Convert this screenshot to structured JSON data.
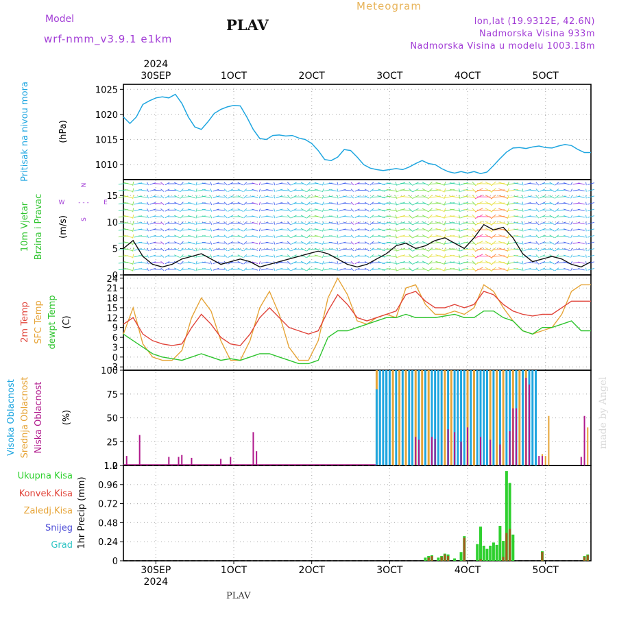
{
  "header": {
    "model_label": "Model",
    "model_name": "wrf-nmm_v3.9.1  e1km",
    "station": "PLAV",
    "meteogram": "Meteogram",
    "lonlat": "lon,lat (19.9312E, 42.6N)",
    "elevation": "Nadmorska Visina 933m",
    "model_elevation": "Nadmorska Visina u modelu 1003.18m",
    "footer_station": "PLAV",
    "made_by": "made by Angel"
  },
  "colors": {
    "pressure": "#1fa6e0",
    "temp2m": "#e0443a",
    "sfc_temp": "#e6a437",
    "dewpt": "#2ec42e",
    "high_cloud": "#1fa6e0",
    "mid_cloud": "#e6a437",
    "low_cloud": "#b0188c",
    "total_precip": "#2ed02e",
    "conv_precip": "#a35a1d",
    "purple": "#a23dd6",
    "snow": "#4a4ad6",
    "grad": "#2ec4c4"
  },
  "time_axis": {
    "top_labels": [
      "30SEP",
      "1OCT",
      "2OCT",
      "3OCT",
      "4OCT",
      "5OCT"
    ],
    "year": "2024",
    "bottom_labels": [
      "30SEP",
      "1OCT",
      "2OCT",
      "3OCT",
      "4OCT",
      "5OCT"
    ]
  },
  "chart_data": [
    {
      "type": "line",
      "id": "pressure",
      "ylabel": "Pritisak na nivou mora",
      "unit": "(hPa)",
      "ylim": [
        1007,
        1026
      ],
      "yticks": [
        1010,
        1015,
        1020,
        1025
      ],
      "x_hours": [
        0,
        2,
        4,
        6,
        8,
        10,
        12,
        14,
        16,
        18,
        20,
        22,
        24,
        26,
        28,
        30,
        32,
        34,
        36,
        38,
        40,
        42,
        44,
        46,
        48,
        50,
        52,
        54,
        56,
        58,
        60,
        62,
        64,
        66,
        68,
        70,
        72,
        74,
        76,
        78,
        80,
        82,
        84,
        86,
        88,
        90,
        92,
        94,
        96,
        98,
        100,
        102,
        104,
        106,
        108,
        110,
        112,
        114,
        116,
        118,
        120,
        122,
        124,
        126,
        128,
        130,
        132,
        134,
        136,
        138,
        140,
        142,
        144
      ],
      "values": [
        1019.5,
        1018.2,
        1019.5,
        1022.0,
        1022.7,
        1023.3,
        1023.5,
        1023.3,
        1024.0,
        1022.2,
        1019.5,
        1017.5,
        1017.0,
        1018.5,
        1020.2,
        1021.0,
        1021.5,
        1021.8,
        1021.7,
        1019.5,
        1017.0,
        1015.2,
        1015.0,
        1015.8,
        1015.9,
        1015.7,
        1015.8,
        1015.3,
        1015.0,
        1014.2,
        1012.8,
        1011.0,
        1010.8,
        1011.5,
        1013.0,
        1012.8,
        1011.5,
        1010.0,
        1009.3,
        1009.0,
        1008.8,
        1009.0,
        1009.2,
        1009.0,
        1009.5,
        1010.2,
        1010.8,
        1010.2,
        1010.0,
        1009.2,
        1008.6,
        1008.3,
        1008.6,
        1008.3,
        1008.6,
        1008.2,
        1008.5,
        1009.8,
        1011.2,
        1012.5,
        1013.3,
        1013.4,
        1013.2,
        1013.5,
        1013.7,
        1013.4,
        1013.3,
        1013.7,
        1014.0,
        1013.8,
        1013.0,
        1012.4,
        1012.4
      ]
    },
    {
      "type": "line",
      "id": "wind",
      "ylabel": "10m Vjetar Brzina i Pravac",
      "unit": "(m/s)",
      "ylim": [
        0,
        18
      ],
      "yticks": [
        0,
        5,
        10,
        15
      ],
      "compass": {
        "n": "N",
        "w": "W",
        "e": "E",
        "s": "S"
      },
      "x_hours": [
        0,
        3,
        6,
        9,
        12,
        15,
        18,
        21,
        24,
        27,
        30,
        33,
        36,
        39,
        42,
        45,
        48,
        51,
        54,
        57,
        60,
        63,
        66,
        69,
        72,
        75,
        78,
        81,
        84,
        87,
        90,
        93,
        96,
        99,
        102,
        105,
        108,
        111,
        114,
        117,
        120,
        123,
        126,
        129,
        132,
        135,
        138,
        141,
        144
      ],
      "speed": [
        5.0,
        6.5,
        3.5,
        2.0,
        1.5,
        2.0,
        3.0,
        3.5,
        4.0,
        3.0,
        2.0,
        2.5,
        3.0,
        2.5,
        1.5,
        2.0,
        2.5,
        3.0,
        3.5,
        4.0,
        4.5,
        4.0,
        3.0,
        2.0,
        1.5,
        2.0,
        3.0,
        4.0,
        5.5,
        6.0,
        5.0,
        5.5,
        6.5,
        7.0,
        6.0,
        5.0,
        7.0,
        9.5,
        8.5,
        9.0,
        7.0,
        4.0,
        2.5,
        3.0,
        3.5,
        3.0,
        2.0,
        1.5,
        2.5
      ]
    },
    {
      "type": "line",
      "id": "temperature",
      "ylabel_2m": "2m Temp",
      "ylabel_sfc": "SFC Temp",
      "ylabel_dew": "dewpt Temp",
      "unit": "(C)",
      "ylim": [
        -4,
        25
      ],
      "yticks": [
        -3,
        0,
        3,
        6,
        9,
        12,
        15,
        18,
        21,
        24
      ],
      "x_hours": [
        0,
        3,
        6,
        9,
        12,
        15,
        18,
        21,
        24,
        27,
        30,
        33,
        36,
        39,
        42,
        45,
        48,
        51,
        54,
        57,
        60,
        63,
        66,
        69,
        72,
        75,
        78,
        81,
        84,
        87,
        90,
        93,
        96,
        99,
        102,
        105,
        108,
        111,
        114,
        117,
        120,
        123,
        126,
        129,
        132,
        135,
        138,
        141,
        144
      ],
      "temp2m": [
        10,
        12,
        7,
        5,
        4,
        3.5,
        4,
        9,
        13,
        10,
        6,
        4,
        3.5,
        7,
        12,
        15,
        12,
        9,
        8,
        7,
        8,
        14,
        19,
        16,
        12,
        11,
        12,
        13,
        14,
        19,
        20,
        17,
        15,
        15,
        16,
        15,
        16,
        20,
        19,
        16,
        14,
        13,
        12.5,
        13,
        13,
        15,
        17,
        17,
        17
      ],
      "sfc": [
        7,
        15,
        4,
        0,
        -1,
        -1,
        2,
        12,
        18,
        14,
        5,
        -1,
        -1,
        5,
        15,
        20,
        13,
        3,
        -1,
        -1,
        5,
        18,
        24,
        19,
        11,
        10,
        12,
        13,
        12,
        21,
        22,
        16,
        13,
        13,
        14,
        13,
        15,
        22,
        20,
        15,
        11,
        8,
        7,
        8,
        9,
        13,
        20,
        22,
        22
      ],
      "dewpt": [
        7,
        5,
        3,
        1,
        0,
        -0.5,
        -1,
        0,
        1,
        0,
        -1,
        -0.5,
        -1,
        0,
        1,
        1,
        0,
        -1,
        -2,
        -2,
        -1,
        6,
        8,
        8,
        9,
        10,
        11,
        12,
        12,
        13,
        12,
        12,
        12,
        12.5,
        13,
        12,
        12,
        14,
        14,
        12,
        11,
        8,
        7,
        9,
        9,
        10,
        11,
        8,
        8
      ]
    },
    {
      "type": "bar",
      "id": "clouds",
      "ylabel_high": "Visoka Oblacnost",
      "ylabel_mid": "Srednja Oblacnost",
      "ylabel_low": "Niska Oblacnost",
      "unit": "(%)",
      "ylim": [
        0,
        100
      ],
      "yticks": [
        0,
        25,
        50,
        75,
        100
      ],
      "overcast_start_hour": 78,
      "overcast_end_hour": 127,
      "high_bars": [
        [
          78,
          80
        ],
        [
          79,
          100
        ],
        [
          81,
          100
        ]
      ],
      "low_bars": [
        [
          1,
          10
        ],
        [
          5,
          32
        ],
        [
          14,
          9
        ],
        [
          17,
          9
        ],
        [
          18,
          11
        ],
        [
          21,
          8
        ],
        [
          30,
          7
        ],
        [
          33,
          9
        ],
        [
          40,
          35
        ],
        [
          41,
          15
        ],
        [
          90,
          30
        ],
        [
          91,
          27
        ],
        [
          95,
          30
        ],
        [
          96,
          28
        ],
        [
          100,
          38
        ],
        [
          102,
          35
        ],
        [
          104,
          25
        ],
        [
          106,
          40
        ],
        [
          110,
          30
        ],
        [
          113,
          27
        ],
        [
          116,
          22
        ],
        [
          119,
          36
        ],
        [
          120,
          60
        ],
        [
          121,
          60
        ],
        [
          124,
          92
        ],
        [
          125,
          85
        ],
        [
          128,
          10
        ],
        [
          129,
          10
        ],
        [
          141,
          9
        ],
        [
          142,
          52
        ]
      ],
      "mid_bars": [
        [
          129,
          12
        ],
        [
          130,
          10
        ],
        [
          131,
          52
        ],
        [
          143,
          40
        ]
      ]
    },
    {
      "type": "bar",
      "id": "precip",
      "ylabel_total": "Ukupna Kisa",
      "ylabel_conv": "Konvek.Kisa",
      "ylabel_frozen": "Zaledj.Kisa",
      "ylabel_snow": "Snijeg",
      "ylabel_grad": "Grad",
      "ylabel_main": "1hr Precip",
      "unit": "(mm)",
      "ylim": [
        0,
        1.2
      ],
      "yticks": [
        0,
        0.24,
        0.48,
        0.72,
        0.96,
        1.2
      ],
      "total": [
        [
          93,
          0.04
        ],
        [
          94,
          0.06
        ],
        [
          95,
          0.07
        ],
        [
          97,
          0.04
        ],
        [
          98,
          0.06
        ],
        [
          99,
          0.09
        ],
        [
          100,
          0.08
        ],
        [
          102,
          0.03
        ],
        [
          104,
          0.11
        ],
        [
          105,
          0.31
        ],
        [
          109,
          0.21
        ],
        [
          110,
          0.43
        ],
        [
          111,
          0.19
        ],
        [
          112,
          0.15
        ],
        [
          113,
          0.19
        ],
        [
          114,
          0.23
        ],
        [
          115,
          0.2
        ],
        [
          116,
          0.44
        ],
        [
          117,
          0.25
        ],
        [
          118,
          1.13
        ],
        [
          119,
          0.98
        ],
        [
          120,
          0.33
        ],
        [
          129,
          0.12
        ],
        [
          142,
          0.06
        ],
        [
          143,
          0.08
        ]
      ],
      "conv": [
        [
          94,
          0.04
        ],
        [
          95,
          0.06
        ],
        [
          98,
          0.05
        ],
        [
          99,
          0.08
        ],
        [
          100,
          0.06
        ],
        [
          105,
          0.29
        ],
        [
          110,
          0.02
        ],
        [
          117,
          0.05
        ],
        [
          118,
          0.35
        ],
        [
          119,
          0.4
        ],
        [
          129,
          0.11
        ],
        [
          142,
          0.05
        ],
        [
          143,
          0.07
        ]
      ]
    }
  ]
}
